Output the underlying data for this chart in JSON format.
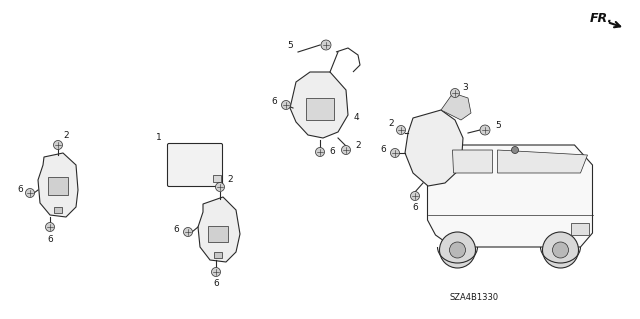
{
  "background_color": "#ffffff",
  "part_number": "SZA4B1330",
  "fr_label": "FR.",
  "fig_width": 6.4,
  "fig_height": 3.19,
  "dpi": 100,
  "line_color": "#2a2a2a",
  "label_color": "#1a1a1a",
  "label_fontsize": 6.5,
  "bolt_fc": "#d0d0d0",
  "component_fc": "#eeeeee",
  "component_fc2": "#e0e0e0"
}
